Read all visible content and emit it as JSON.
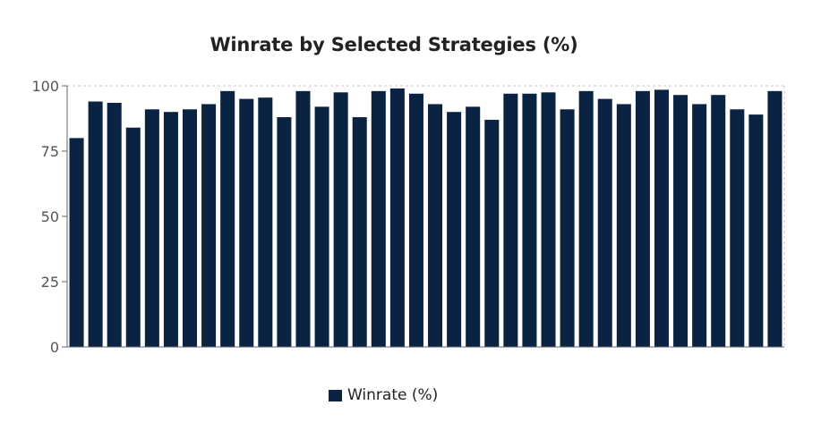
{
  "chart_data": {
    "type": "bar",
    "title": "Winrate by Selected Strategies (%)",
    "xlabel": "",
    "ylabel": "",
    "ylim": [
      0,
      100
    ],
    "yticks": [
      0,
      25,
      50,
      75,
      100
    ],
    "grid": true,
    "legend_position": "bottom-center",
    "bar_color": "#0b2343",
    "series": [
      {
        "name": "Winrate (%)",
        "values": [
          80,
          94,
          93.5,
          84,
          91,
          90,
          91,
          93,
          98,
          95,
          95.5,
          88,
          98,
          92,
          97.5,
          88,
          98,
          99,
          97,
          93,
          90,
          92,
          87,
          97,
          97,
          97.5,
          91,
          98,
          95,
          93,
          98,
          98.5,
          96.5,
          93,
          96.5,
          91,
          89,
          98
        ]
      }
    ]
  }
}
